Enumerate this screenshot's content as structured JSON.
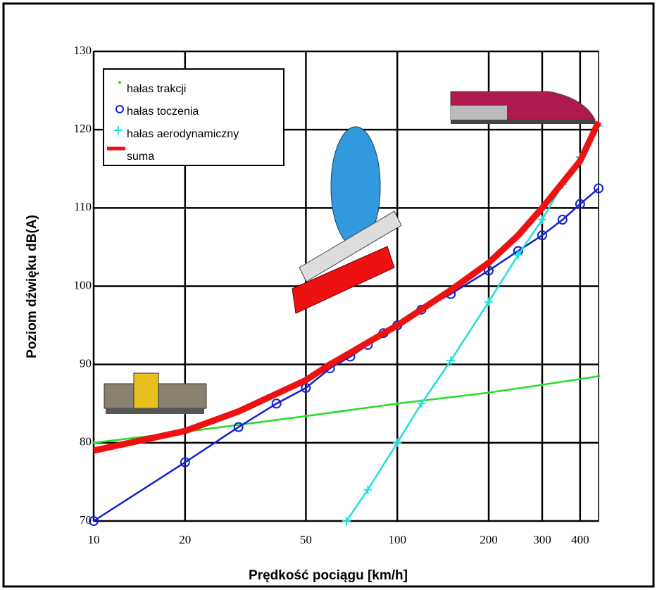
{
  "chart_data": {
    "type": "line",
    "x_label": "Prędkość pociągu [km/h]",
    "y_label": "Poziom dźwięku dB(A)",
    "xlim": [
      10,
      460
    ],
    "ylim": [
      70,
      130
    ],
    "xticks": [
      10,
      20,
      50,
      100,
      200,
      300,
      400
    ],
    "yticks": [
      70,
      80,
      90,
      100,
      110,
      120,
      130
    ],
    "x_scale": "log",
    "grid": true,
    "legend": "upper left",
    "series": [
      {
        "name": "hałas trakcji",
        "color": "#22dd22",
        "marker": "dot",
        "x": [
          10,
          20,
          50,
          100,
          200,
          300,
          460
        ],
        "values": [
          80,
          81.4,
          83.4,
          85,
          86.4,
          87.4,
          88.5
        ]
      },
      {
        "name": "hałas toczenia",
        "color": "#1020d0",
        "marker": "circle",
        "x": [
          10,
          20,
          30,
          40,
          50,
          60,
          70,
          80,
          90,
          100,
          120,
          150,
          200,
          250,
          300,
          350,
          400,
          460
        ],
        "values": [
          70,
          77.5,
          82,
          85,
          87,
          89.5,
          91,
          92.5,
          94,
          95,
          97,
          99,
          102,
          104.5,
          106.5,
          108.5,
          110.5,
          112.5
        ]
      },
      {
        "name": "hałas aerodynamiczny",
        "color": "#22dddd",
        "marker": "plus",
        "x": [
          68,
          80,
          100,
          120,
          150,
          200,
          250,
          300,
          350,
          400,
          460
        ],
        "values": [
          70,
          74,
          80,
          85,
          90.5,
          98,
          104,
          108.5,
          113,
          116.5,
          120.5
        ]
      },
      {
        "name": "suma",
        "color": "#ee1111",
        "marker": "none",
        "x": [
          10,
          20,
          30,
          50,
          60,
          70,
          100,
          150,
          200,
          250,
          300,
          400,
          460
        ],
        "values": [
          79,
          81.5,
          84,
          88,
          90,
          91.5,
          95,
          99.5,
          103,
          106.5,
          110,
          116,
          121
        ]
      }
    ]
  }
}
